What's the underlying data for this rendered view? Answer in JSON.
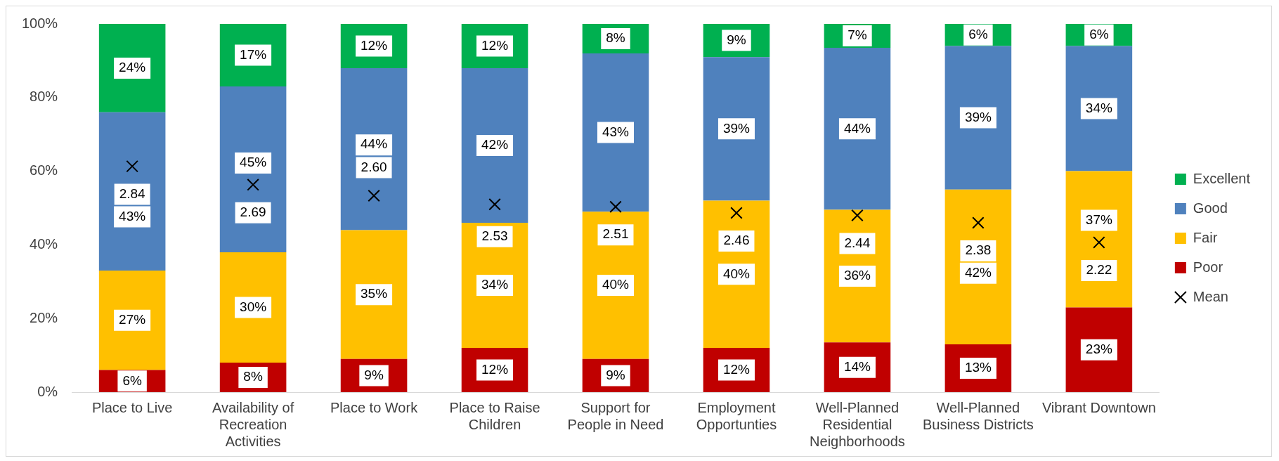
{
  "chart_data": {
    "type": "bar",
    "stacked": true,
    "categories": [
      "Place to Live",
      "Availability of Recreation Activities",
      "Place to Work",
      "Place to Raise Children",
      "Support for People in Need",
      "Employment Opportunties",
      "Well-Planned Residential Neighborhoods",
      "Well-Planned Business Districts",
      "Vibrant Downtown"
    ],
    "series": [
      {
        "name": "Poor",
        "color": "#c00000",
        "values": [
          6,
          8,
          9,
          12,
          9,
          12,
          13.5,
          13,
          23
        ],
        "value_labels": [
          "6%",
          "8%",
          "9%",
          "12%",
          "9%",
          "12%",
          "14%",
          "13%",
          "23%"
        ]
      },
      {
        "name": "Fair",
        "color": "#ffc000",
        "values": [
          27,
          30,
          35,
          34,
          40,
          40,
          36,
          42,
          37
        ],
        "value_labels": [
          "27%",
          "30%",
          "35%",
          "34%",
          "40%",
          "40%",
          "36%",
          "42%",
          "37%"
        ]
      },
      {
        "name": "Good",
        "color": "#4f81bd",
        "values": [
          43,
          45,
          44,
          42,
          43,
          39,
          44,
          39,
          34
        ],
        "value_labels": [
          "43%",
          "45%",
          "44%",
          "42%",
          "43%",
          "39%",
          "44%",
          "39%",
          "34%"
        ]
      },
      {
        "name": "Excellent",
        "color": "#00b050",
        "values": [
          24,
          17,
          12,
          12,
          8,
          9,
          6.5,
          6,
          6
        ],
        "value_labels": [
          "24%",
          "17%",
          "12%",
          "12%",
          "8%",
          "9%",
          "7%",
          "6%",
          "6%"
        ]
      },
      {
        "name": "Mean",
        "type": "scatter",
        "axis": "y2",
        "marker": "cross",
        "color": "#000000",
        "x": [
          "Place to Live",
          "Availability of Recreation Activities",
          "Place to Work",
          "Place to Raise Children",
          "Support for People in Need",
          "Employment Opportunties",
          "Well-Planned Residential Neighborhoods",
          "Well-Planned Business Districts",
          "Vibrant Downtown"
        ],
        "values": [
          2.84,
          2.69,
          2.6,
          2.53,
          2.51,
          2.46,
          2.44,
          2.38,
          2.22
        ],
        "value_labels": [
          "2.84",
          "2.69",
          "2.60",
          "2.53",
          "2.51",
          "2.46",
          "2.44",
          "2.38",
          "2.22"
        ]
      }
    ],
    "ylim": [
      0,
      100
    ],
    "yticks": [
      {
        "value": 0,
        "label": "0%"
      },
      {
        "value": 20,
        "label": "20%"
      },
      {
        "value": 40,
        "label": "40%"
      },
      {
        "value": 60,
        "label": "60%"
      },
      {
        "value": 80,
        "label": "80%"
      },
      {
        "value": 100,
        "label": "100%"
      }
    ],
    "y2lim": [
      1,
      4
    ],
    "tick_labels": "xy",
    "grid": false,
    "legend": "right"
  }
}
